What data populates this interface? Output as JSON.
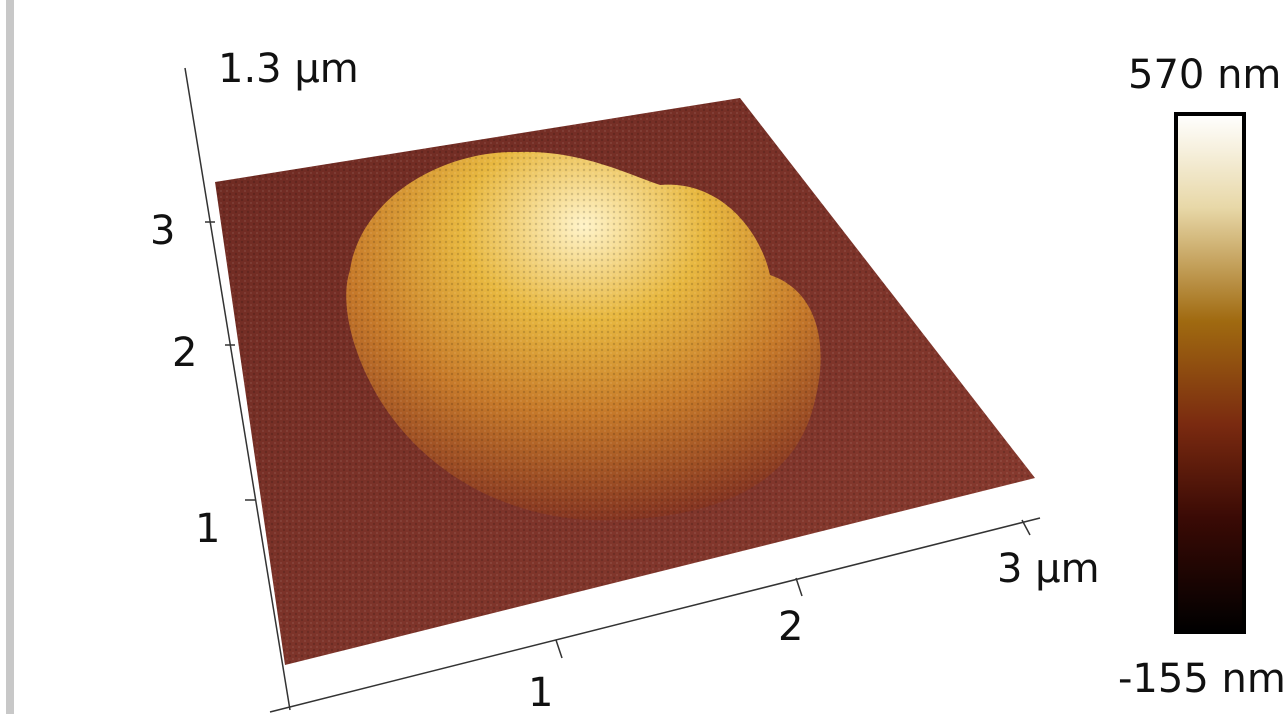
{
  "z_axis": {
    "label": "1.3 µm"
  },
  "y_axis": {
    "ticks": [
      "3",
      "2",
      "1"
    ]
  },
  "x_axis": {
    "ticks": [
      "1",
      "2"
    ],
    "end_label": "3 µm"
  },
  "colorbar": {
    "max_label": "570 nm",
    "min_label": "-155 nm"
  }
}
